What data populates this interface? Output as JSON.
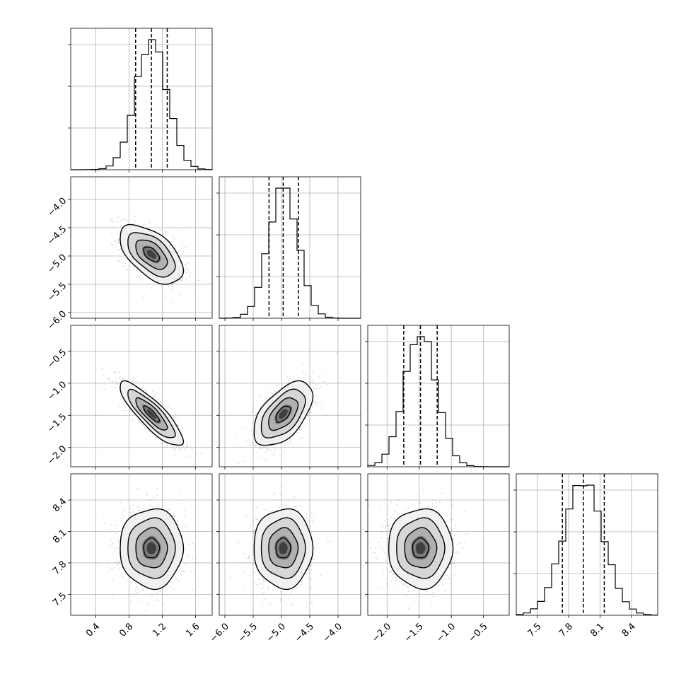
{
  "chart_data": {
    "type": "corner",
    "title": "",
    "xlabel": "",
    "ylabel": "",
    "parameters": [
      {
        "mean": 1.07,
        "sd": 0.19,
        "range": [
          0.1,
          1.8
        ],
        "ticks": [
          "0.4",
          "0.8",
          "1.2",
          "1.6"
        ],
        "quantiles": [
          0.88,
          1.07,
          1.26
        ]
      },
      {
        "mean": -4.97,
        "sd": 0.26,
        "range": [
          -6.1,
          -3.6
        ],
        "ticks": [
          "−6.0",
          "−5.5",
          "−5.0",
          "−4.5",
          "−4.0"
        ],
        "quantiles": [
          -5.22,
          -4.97,
          -4.7
        ]
      },
      {
        "mean": -1.48,
        "sd": 0.25,
        "range": [
          -2.3,
          -0.1
        ],
        "ticks": [
          "−2.0",
          "−1.5",
          "−1.0",
          "−0.5"
        ],
        "quantiles": [
          -1.74,
          -1.48,
          -1.22
        ]
      },
      {
        "mean": 7.94,
        "sd": 0.19,
        "range": [
          7.3,
          8.65
        ],
        "ticks": [
          "7.5",
          "7.8",
          "8.1",
          "8.4"
        ],
        "quantiles": [
          7.74,
          7.94,
          8.14
        ]
      }
    ],
    "correlations": {
      "1-0": -0.55,
      "2-0": -0.85,
      "2-1": 0.55,
      "3-0": 0.0,
      "3-1": 0.0,
      "3-2": 0.0
    },
    "contour_levels_sigma": [
      0.5,
      1.0,
      1.5,
      2.0
    ],
    "colors": {
      "line": "#000000",
      "grid": "#b0b0b0",
      "points": "#8c8c8c"
    },
    "grid": true,
    "legend": "none"
  }
}
